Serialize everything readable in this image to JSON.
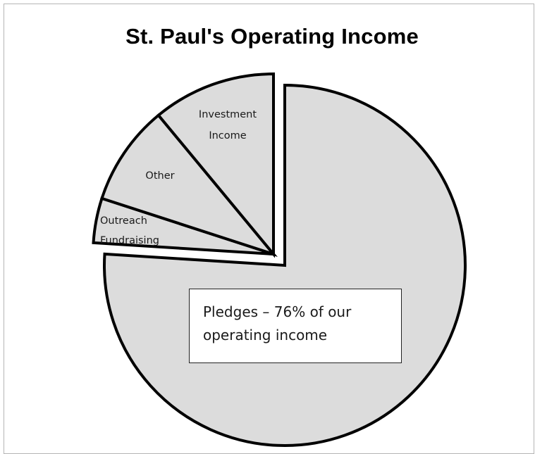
{
  "chart_data": {
    "type": "pie",
    "title": "St. Paul's Operating Income",
    "slices": [
      {
        "label": "Pledges",
        "value": 76
      },
      {
        "label": "Outreach Fundraising",
        "value": 4
      },
      {
        "label": "Other",
        "value": 9
      },
      {
        "label": "Investment Income",
        "value": 11
      }
    ],
    "annotation": "Pledges – 76% of our operating income",
    "colors": {
      "fill": "#dcdcdc",
      "stroke": "#000000"
    }
  }
}
